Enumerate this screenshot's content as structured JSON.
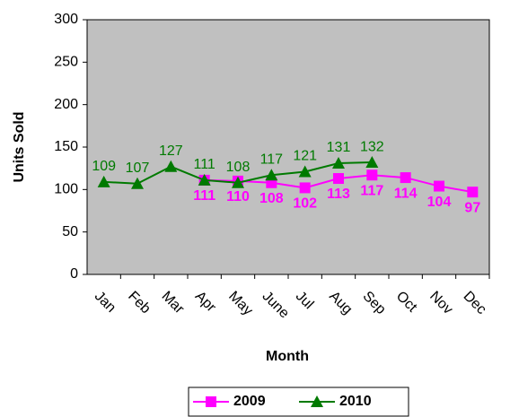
{
  "chart_data": {
    "type": "line",
    "x_label": "Month",
    "y_label": "Units Sold",
    "categories": [
      "Jan",
      "Feb",
      "Mar",
      "Apr",
      "May",
      "June",
      "Jul",
      "Aug",
      "Sep",
      "Oct",
      "Nov",
      "Dec"
    ],
    "series": [
      {
        "name": "2009",
        "color": "#ff00ff",
        "marker": "square",
        "values": [
          null,
          null,
          null,
          111,
          110,
          108,
          102,
          113,
          117,
          114,
          104,
          97
        ]
      },
      {
        "name": "2010",
        "color": "#007a00",
        "marker": "triangle",
        "values": [
          109,
          107,
          127,
          111,
          108,
          117,
          121,
          131,
          132,
          null,
          null,
          null
        ]
      }
    ],
    "ylim": [
      0,
      300
    ],
    "yticks": [
      0,
      50,
      100,
      150,
      200,
      250,
      300
    ],
    "grid": false,
    "legend": "bottom"
  }
}
